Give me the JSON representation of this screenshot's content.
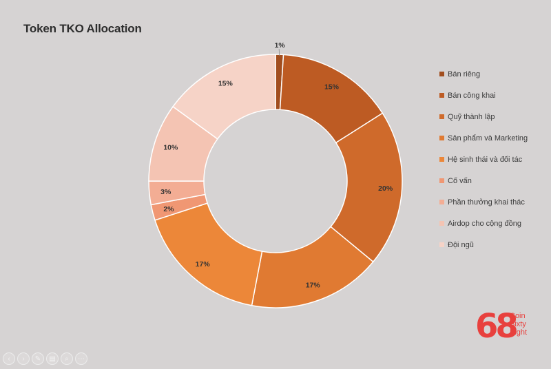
{
  "chart_data": {
    "type": "pie",
    "title": "Token TKO Allocation",
    "categories": [
      "Bán riêng",
      "Bán công khai",
      "Quỹ thành lập",
      "Sản phẩm và Marketing",
      "Hệ sinh thái và đối tác",
      "Cố vấn",
      "Phần thưởng khai thác",
      "Airdop cho cộng đồng",
      "Đội ngũ"
    ],
    "values": [
      1,
      15,
      20,
      17,
      17,
      2,
      3,
      10,
      15
    ],
    "data_labels": [
      "1%",
      "15%",
      "20%",
      "17%",
      "17%",
      "2%",
      "3%",
      "10%",
      "15%"
    ],
    "colors": [
      "#a24e1f",
      "#bd5b23",
      "#cf6a2b",
      "#e07a32",
      "#ec8739",
      "#f09773",
      "#f3ad94",
      "#f4c4b3",
      "#f6d3c7"
    ],
    "legend_position": "right",
    "donut": true
  },
  "brand": {
    "digits": "68",
    "words": [
      "Coin",
      "Sixty",
      "Eight"
    ]
  },
  "toolbar": {
    "icons": [
      "back-icon",
      "forward-icon",
      "pen-icon",
      "slides-icon",
      "zoom-icon",
      "more-icon"
    ],
    "glyphs": [
      "‹",
      "›",
      "✎",
      "▤",
      "⌕",
      "⋯"
    ]
  }
}
